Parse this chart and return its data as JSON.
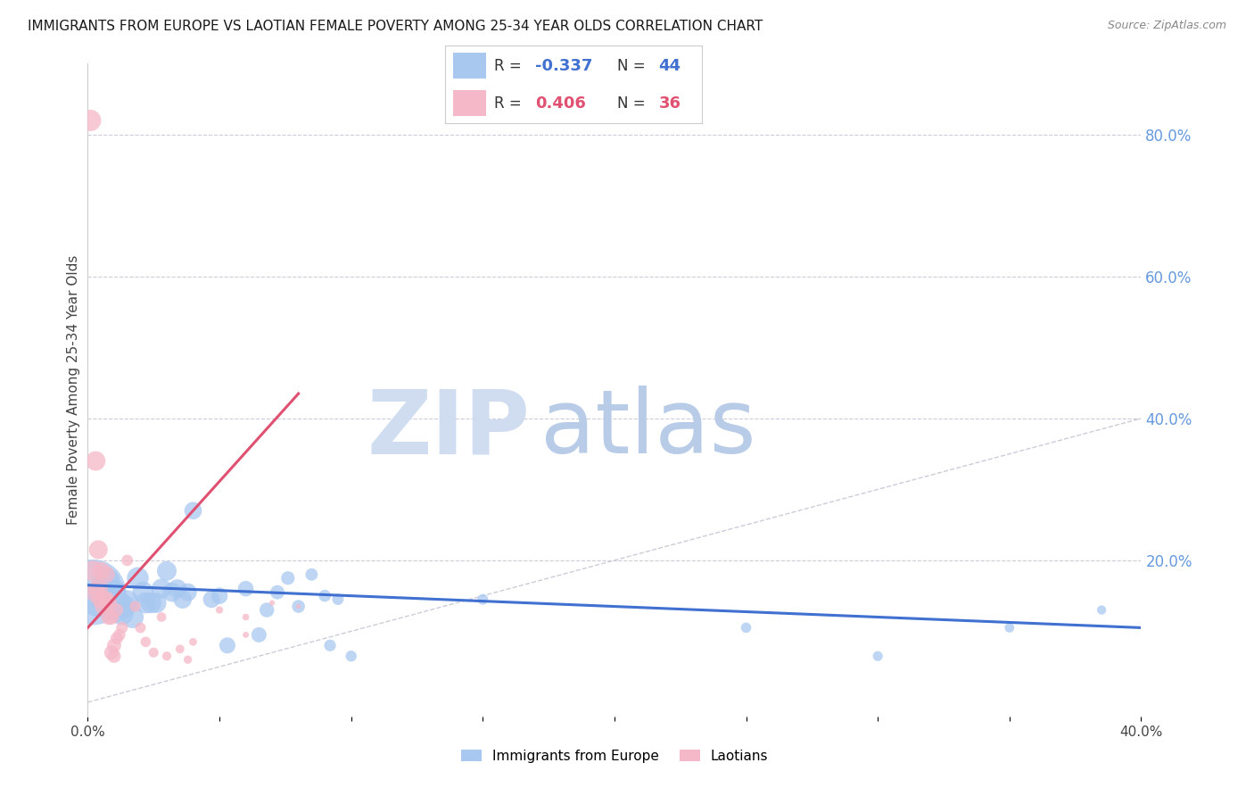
{
  "title": "IMMIGRANTS FROM EUROPE VS LAOTIAN FEMALE POVERTY AMONG 25-34 YEAR OLDS CORRELATION CHART",
  "source": "Source: ZipAtlas.com",
  "ylabel": "Female Poverty Among 25-34 Year Olds",
  "xlim": [
    0.0,
    0.4
  ],
  "ylim": [
    -0.02,
    0.9
  ],
  "right_yticks": [
    0.2,
    0.4,
    0.6,
    0.8
  ],
  "right_yticklabels": [
    "20.0%",
    "40.0%",
    "60.0%",
    "80.0%"
  ],
  "blue_R": "-0.337",
  "blue_N": "44",
  "pink_R": "0.406",
  "pink_N": "36",
  "legend_label_blue": "Immigrants from Europe",
  "legend_label_pink": "Laotians",
  "blue_color": "#a8c8f0",
  "pink_color": "#f5b8c8",
  "blue_line_color": "#4070d0",
  "pink_line_color": "#e05070",
  "diag_line_color": "#c0c0d0",
  "watermark_zip": "ZIP",
  "watermark_atlas": "atlas",
  "watermark_color_zip": "#d0dcf0",
  "watermark_color_atlas": "#b8cce8",
  "xtick_positions": [
    0.0,
    0.05,
    0.1,
    0.15,
    0.2,
    0.25,
    0.3,
    0.35,
    0.4
  ],
  "xtick_show_labels": [
    0.0,
    0.4
  ],
  "blue_points": [
    [
      0.002,
      0.155,
      2800
    ],
    [
      0.004,
      0.145,
      800
    ],
    [
      0.006,
      0.15,
      600
    ],
    [
      0.007,
      0.17,
      500
    ],
    [
      0.008,
      0.135,
      450
    ],
    [
      0.009,
      0.145,
      420
    ],
    [
      0.01,
      0.155,
      400
    ],
    [
      0.011,
      0.13,
      380
    ],
    [
      0.012,
      0.14,
      360
    ],
    [
      0.013,
      0.125,
      350
    ],
    [
      0.014,
      0.135,
      340
    ],
    [
      0.015,
      0.142,
      330
    ],
    [
      0.017,
      0.12,
      320
    ],
    [
      0.019,
      0.175,
      310
    ],
    [
      0.021,
      0.155,
      300
    ],
    [
      0.022,
      0.14,
      290
    ],
    [
      0.024,
      0.14,
      280
    ],
    [
      0.026,
      0.14,
      270
    ],
    [
      0.028,
      0.16,
      260
    ],
    [
      0.03,
      0.185,
      250
    ],
    [
      0.032,
      0.155,
      240
    ],
    [
      0.034,
      0.16,
      230
    ],
    [
      0.036,
      0.145,
      220
    ],
    [
      0.038,
      0.155,
      210
    ],
    [
      0.04,
      0.27,
      200
    ],
    [
      0.047,
      0.145,
      190
    ],
    [
      0.05,
      0.15,
      180
    ],
    [
      0.053,
      0.08,
      170
    ],
    [
      0.06,
      0.16,
      160
    ],
    [
      0.065,
      0.095,
      150
    ],
    [
      0.068,
      0.13,
      140
    ],
    [
      0.072,
      0.155,
      130
    ],
    [
      0.076,
      0.175,
      120
    ],
    [
      0.08,
      0.135,
      110
    ],
    [
      0.085,
      0.18,
      100
    ],
    [
      0.09,
      0.15,
      95
    ],
    [
      0.092,
      0.08,
      90
    ],
    [
      0.095,
      0.145,
      85
    ],
    [
      0.1,
      0.065,
      80
    ],
    [
      0.15,
      0.145,
      75
    ],
    [
      0.25,
      0.105,
      70
    ],
    [
      0.3,
      0.065,
      65
    ],
    [
      0.35,
      0.105,
      60
    ],
    [
      0.385,
      0.13,
      55
    ]
  ],
  "pink_points": [
    [
      0.001,
      0.82,
      300
    ],
    [
      0.002,
      0.185,
      280
    ],
    [
      0.003,
      0.155,
      260
    ],
    [
      0.003,
      0.34,
      250
    ],
    [
      0.004,
      0.16,
      240
    ],
    [
      0.004,
      0.215,
      230
    ],
    [
      0.005,
      0.145,
      220
    ],
    [
      0.005,
      0.185,
      210
    ],
    [
      0.006,
      0.135,
      200
    ],
    [
      0.007,
      0.18,
      190
    ],
    [
      0.007,
      0.145,
      180
    ],
    [
      0.008,
      0.14,
      170
    ],
    [
      0.008,
      0.12,
      160
    ],
    [
      0.009,
      0.12,
      150
    ],
    [
      0.009,
      0.07,
      140
    ],
    [
      0.01,
      0.08,
      130
    ],
    [
      0.01,
      0.065,
      120
    ],
    [
      0.011,
      0.13,
      110
    ],
    [
      0.011,
      0.09,
      100
    ],
    [
      0.012,
      0.095,
      95
    ],
    [
      0.013,
      0.105,
      90
    ],
    [
      0.015,
      0.2,
      85
    ],
    [
      0.018,
      0.135,
      80
    ],
    [
      0.02,
      0.105,
      75
    ],
    [
      0.022,
      0.085,
      70
    ],
    [
      0.025,
      0.07,
      65
    ],
    [
      0.028,
      0.12,
      60
    ],
    [
      0.03,
      0.065,
      55
    ],
    [
      0.035,
      0.075,
      50
    ],
    [
      0.038,
      0.06,
      45
    ],
    [
      0.04,
      0.085,
      40
    ],
    [
      0.05,
      0.13,
      35
    ],
    [
      0.06,
      0.12,
      30
    ],
    [
      0.06,
      0.095,
      25
    ],
    [
      0.07,
      0.14,
      20
    ],
    [
      0.08,
      0.135,
      15
    ]
  ],
  "blue_trend": [
    0.0,
    0.4,
    0.165,
    0.105
  ],
  "pink_trend_x": [
    0.0,
    0.08
  ],
  "pink_trend_y": [
    0.105,
    0.435
  ]
}
